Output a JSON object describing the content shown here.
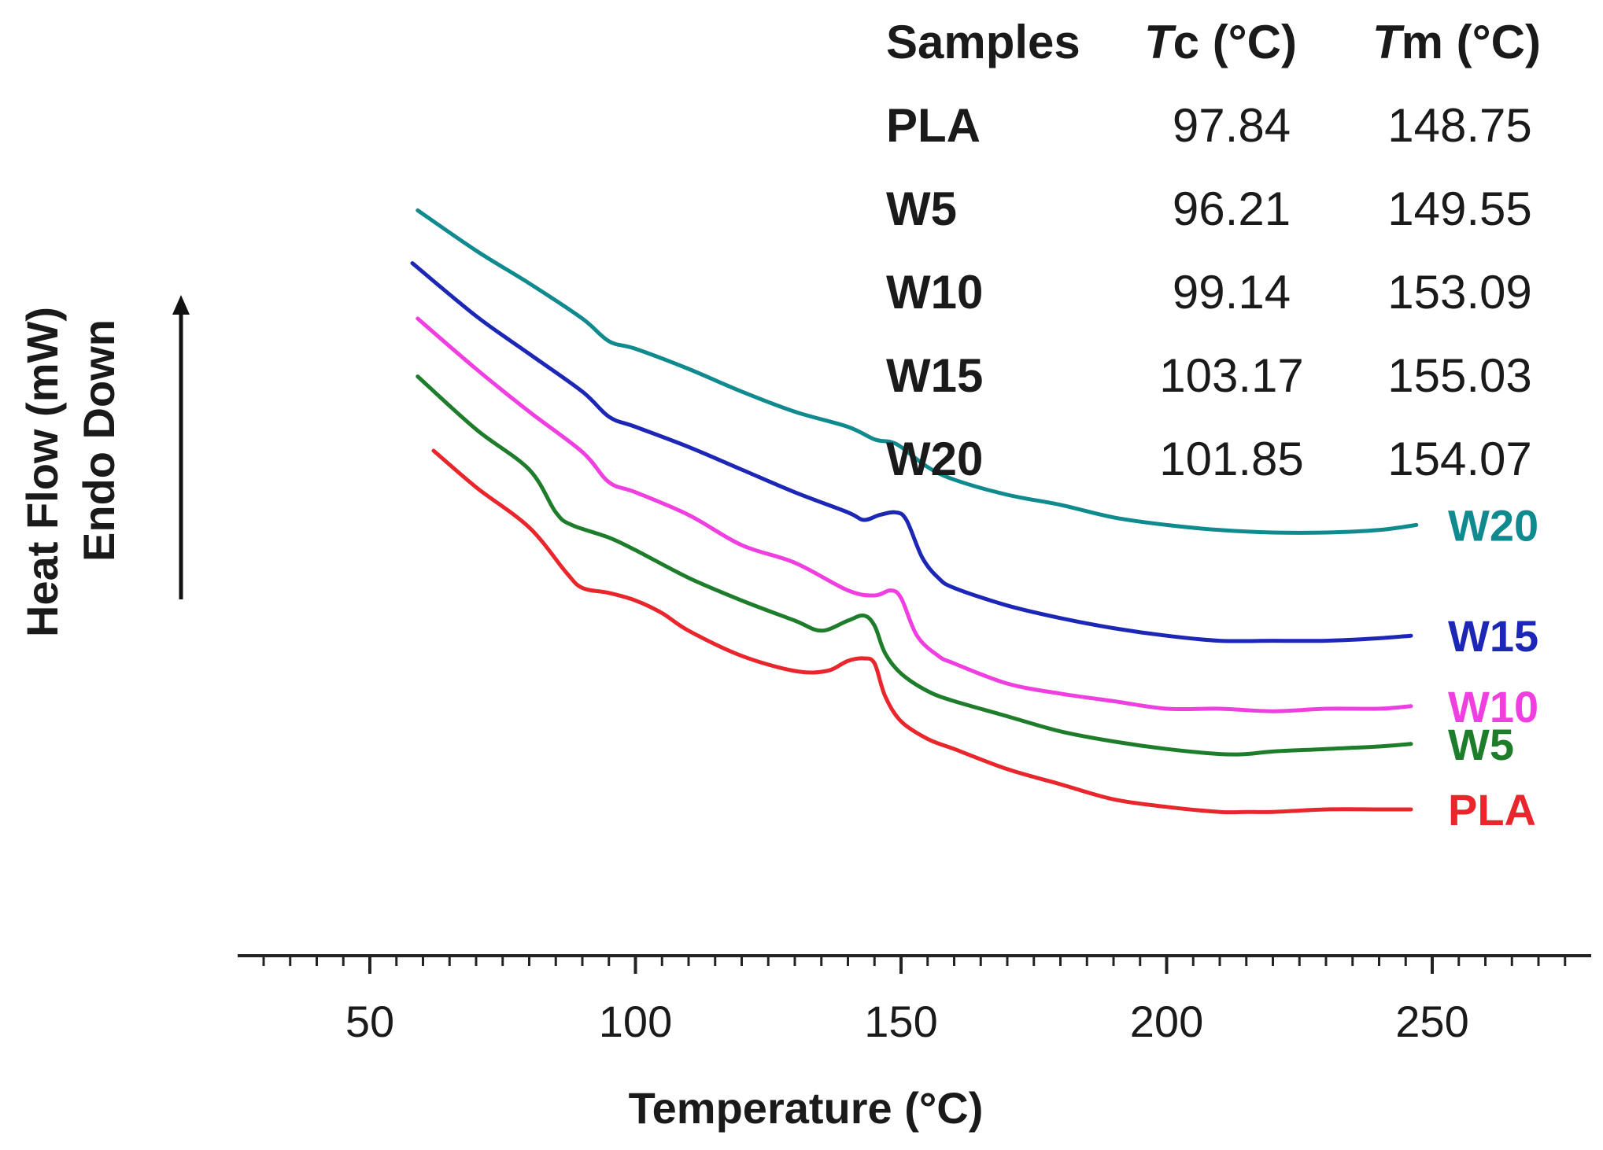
{
  "chart_data": {
    "type": "line",
    "title": "",
    "xlabel": "Temperature (°C)",
    "ylabel_lines": [
      "Heat Flow (mW)",
      "Endo Down"
    ],
    "xlim": [
      28,
      277
    ],
    "x_ticks": [
      50,
      100,
      150,
      200,
      250
    ],
    "x_minor_step": 5,
    "y_units": "arbitrary (offset curves)",
    "grid": false,
    "series": [
      {
        "name": "PLA",
        "color": "#e8262b",
        "x": [
          62,
          70,
          80,
          87,
          90,
          95,
          100,
          105,
          110,
          120,
          130,
          136,
          140,
          143,
          145,
          147,
          150,
          155,
          160,
          170,
          180,
          190,
          200,
          210,
          215,
          220,
          230,
          240,
          246
        ],
        "y": [
          47.5,
          33,
          17,
          -1,
          -7,
          -9,
          -12,
          -17,
          -24,
          -34,
          -40,
          -40,
          -36,
          -35,
          -37,
          -50,
          -60,
          -67,
          -71,
          -79,
          -85,
          -91,
          -94,
          -96,
          -96,
          -96,
          -95,
          -95,
          -95
        ]
      },
      {
        "name": "W5",
        "color": "#1e7d2a",
        "x": [
          59,
          70,
          80,
          85,
          88,
          95,
          100,
          110,
          120,
          130,
          135,
          140,
          143,
          145,
          147,
          150,
          155,
          160,
          170,
          180,
          190,
          200,
          210,
          215,
          220,
          230,
          240,
          246
        ],
        "y": [
          77,
          56,
          40,
          23,
          18,
          13,
          8,
          -3,
          -12,
          -20,
          -24,
          -20,
          -18,
          -22,
          -33,
          -41,
          -48,
          -52,
          -58,
          -64,
          -68,
          -71,
          -73,
          -73,
          -72,
          -71,
          -70,
          -69
        ]
      },
      {
        "name": "W10",
        "color": "#f03fe0",
        "x": [
          59,
          70,
          80,
          90,
          95,
          100,
          110,
          120,
          130,
          140,
          145,
          148,
          150,
          153,
          157,
          160,
          170,
          180,
          190,
          200,
          210,
          220,
          230,
          240,
          246
        ],
        "y": [
          100,
          80,
          63,
          47,
          35,
          31,
          22,
          10,
          3,
          -8,
          -10,
          -8,
          -11,
          -26,
          -34,
          -37,
          -45,
          -49,
          -52,
          -55,
          -55,
          -56,
          -55,
          -55,
          -54
        ]
      },
      {
        "name": "W15",
        "color": "#1d27b6",
        "x": [
          58,
          70,
          80,
          90,
          95,
          100,
          110,
          120,
          130,
          140,
          143,
          146,
          149,
          151,
          154,
          157,
          160,
          170,
          180,
          190,
          200,
          210,
          220,
          230,
          240,
          246
        ],
        "y": [
          122,
          101,
          86,
          71,
          61,
          57,
          49,
          40,
          31,
          23,
          20,
          22,
          23,
          20,
          5,
          -3,
          -7,
          -14,
          -19,
          -23,
          -26,
          -28,
          -28,
          -28,
          -27,
          -26
        ]
      },
      {
        "name": "W20",
        "color": "#0f8a8e",
        "x": [
          59,
          70,
          80,
          90,
          95,
          100,
          110,
          120,
          130,
          140,
          145,
          148,
          150,
          155,
          160,
          170,
          180,
          190,
          200,
          210,
          220,
          230,
          240,
          247
        ],
        "y": [
          143,
          127,
          114,
          100,
          91,
          88,
          80,
          71,
          63,
          57,
          52,
          51,
          49,
          41,
          36,
          30,
          26,
          21,
          18,
          16,
          15,
          15,
          16,
          18
        ]
      }
    ],
    "table": {
      "headers": [
        {
          "main": "Samples",
          "italic": "",
          "rest": ""
        },
        {
          "main": "",
          "italic": "T",
          "rest": "c (°C)"
        },
        {
          "main": "",
          "italic": "T",
          "rest": "m (°C)"
        }
      ],
      "rows": [
        [
          "PLA",
          "97.84",
          "148.75"
        ],
        [
          "W5",
          "96.21",
          "149.55"
        ],
        [
          "W10",
          "99.14",
          "153.09"
        ],
        [
          "W15",
          "103.17",
          "155.03"
        ],
        [
          "W20",
          "101.85",
          "154.07"
        ]
      ]
    }
  }
}
